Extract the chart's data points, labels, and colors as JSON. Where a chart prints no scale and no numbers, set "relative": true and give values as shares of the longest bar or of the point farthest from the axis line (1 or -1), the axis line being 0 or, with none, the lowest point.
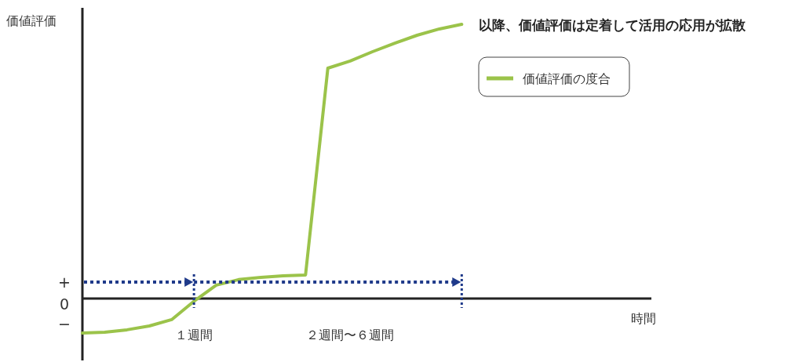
{
  "chart_data": {
    "type": "line",
    "relative": true,
    "ylabel": "価値評価",
    "xlabel": "時間",
    "categories": [
      null,
      null,
      null,
      null,
      null,
      "１週間",
      null,
      null,
      null,
      null,
      null,
      null,
      "２週間〜６週間",
      null,
      null,
      null,
      null,
      null,
      null,
      null,
      null,
      null,
      null,
      null,
      null,
      null
    ],
    "series": [
      {
        "name": "価値評価の度合",
        "color": "#9bc34a",
        "values": [
          -0.126,
          -0.123,
          -0.114,
          -0.1,
          -0.077,
          -0.01,
          0.049,
          0.069,
          0.077,
          0.083,
          0.086,
          0.84,
          0.866,
          0.9,
          0.931,
          0.96,
          0.983,
          1,
          null,
          null,
          null,
          null,
          null,
          null,
          null,
          null
        ]
      }
    ],
    "annotations": [
      "以降、価値評価は定着して活用の応用が拡散",
      "+",
      "0",
      "−"
    ],
    "legend": "top right",
    "grid": false,
    "marker": "none",
    "line_style": "solid"
  }
}
